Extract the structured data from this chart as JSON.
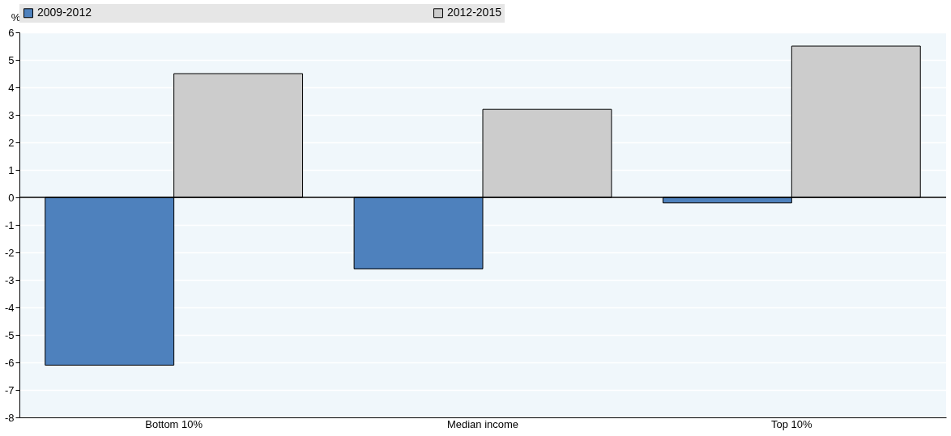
{
  "chart_data": {
    "type": "bar",
    "ylabel": "%",
    "categories": [
      "Bottom 10%",
      "Median income",
      "Top 10%"
    ],
    "series": [
      {
        "name": "2009-2012",
        "color": "#4e81bd",
        "values": [
          -6.1,
          -2.6,
          -0.2
        ]
      },
      {
        "name": "2012-2015",
        "color": "#cccccc",
        "values": [
          4.5,
          3.2,
          5.5
        ]
      }
    ],
    "ylim": [
      -8,
      6
    ],
    "yticks": [
      -8,
      -7,
      -6,
      -5,
      -4,
      -3,
      -2,
      -1,
      0,
      1,
      2,
      3,
      4,
      5,
      6
    ],
    "ref_lines": [
      {
        "axis": "y",
        "value": 0,
        "color": "#000000"
      }
    ],
    "grid": "y",
    "legend": "top"
  }
}
